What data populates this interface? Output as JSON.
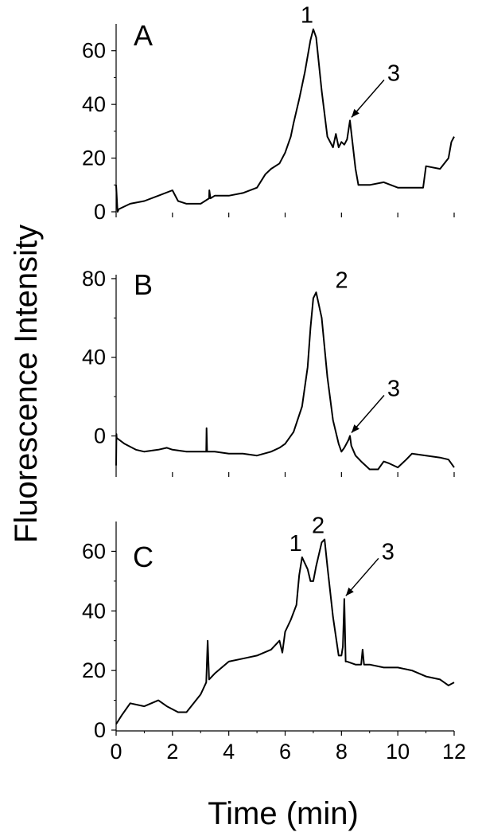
{
  "chart_data": [
    {
      "panel": "A",
      "type": "line",
      "x_range": [
        0,
        12
      ],
      "ylim": [
        0,
        70
      ],
      "y_ticks": [
        0,
        20,
        40,
        60
      ],
      "grid": false,
      "peak_labels": [
        {
          "text": "1",
          "x": 7.0,
          "y": 68
        },
        {
          "text": "3",
          "x": 8.3,
          "y": 34,
          "arrow": true
        }
      ],
      "series": [
        {
          "x": [
            0.0,
            0.05,
            0.1,
            0.5,
            1.0,
            1.5,
            2.0,
            2.2,
            2.5,
            3.0,
            3.3,
            3.31,
            3.35,
            3.5,
            4.0,
            4.5,
            5.0,
            5.3,
            5.5,
            5.8,
            6.0,
            6.2,
            6.3,
            6.5,
            6.7,
            6.9,
            7.0,
            7.1,
            7.3,
            7.5,
            7.7,
            7.8,
            7.9,
            8.0,
            8.1,
            8.2,
            8.3,
            8.4,
            8.5,
            8.6,
            9.0,
            9.5,
            10.0,
            10.5,
            10.9,
            11.0,
            11.5,
            11.8,
            11.9,
            12.0
          ],
          "y": [
            10,
            0,
            1,
            3,
            4,
            6,
            8,
            4,
            3,
            3,
            5,
            8,
            5,
            6,
            6,
            7,
            9,
            14,
            16,
            18,
            22,
            28,
            33,
            42,
            52,
            64,
            68,
            65,
            45,
            28,
            24,
            29,
            24,
            26,
            25,
            27,
            34,
            25,
            16,
            10,
            10,
            11,
            9,
            9,
            9,
            17,
            16,
            20,
            26,
            28
          ]
        }
      ]
    },
    {
      "panel": "B",
      "type": "line",
      "x_range": [
        0,
        12
      ],
      "ylim": [
        -18,
        82
      ],
      "y_ticks": [
        0,
        40,
        80
      ],
      "grid": false,
      "peak_labels": [
        {
          "text": "2",
          "x": 7.5,
          "y": 72
        },
        {
          "text": "3",
          "x": 8.3,
          "y": 0,
          "arrow": true
        }
      ],
      "series": [
        {
          "x": [
            0.0,
            0.01,
            0.02,
            0.3,
            0.7,
            1.0,
            1.5,
            1.8,
            2.0,
            2.5,
            3.0,
            3.2,
            3.21,
            3.23,
            3.5,
            4.0,
            4.5,
            5.0,
            5.5,
            5.8,
            6.0,
            6.3,
            6.6,
            6.8,
            6.9,
            7.0,
            7.1,
            7.3,
            7.5,
            7.7,
            7.9,
            8.0,
            8.1,
            8.25,
            8.3,
            8.35,
            8.5,
            8.7,
            9.0,
            9.3,
            9.5,
            9.7,
            10.0,
            10.3,
            10.5,
            11.0,
            11.5,
            11.8,
            12.0
          ],
          "y": [
            -15,
            1,
            -1,
            -4,
            -7,
            -8,
            -7,
            -6,
            -7,
            -8,
            -8,
            -8,
            4,
            -8,
            -8,
            -9,
            -9,
            -10,
            -8,
            -6,
            -4,
            2,
            15,
            35,
            55,
            70,
            73,
            60,
            30,
            8,
            -4,
            -8,
            -6,
            -2,
            0,
            -5,
            -10,
            -13,
            -17,
            -17,
            -13,
            -14,
            -16,
            -12,
            -9,
            -10,
            -11,
            -12,
            -16
          ]
        }
      ]
    },
    {
      "panel": "C",
      "type": "line",
      "x_range": [
        0,
        12
      ],
      "ylim": [
        0,
        70
      ],
      "y_ticks": [
        0,
        20,
        40,
        60
      ],
      "grid": false,
      "peak_labels": [
        {
          "text": "1",
          "x": 6.6,
          "y": 58
        },
        {
          "text": "2",
          "x": 7.4,
          "y": 64
        },
        {
          "text": "3",
          "x": 8.1,
          "y": 44,
          "arrow": true
        }
      ],
      "series": [
        {
          "x": [
            0.0,
            0.2,
            0.5,
            1.0,
            1.5,
            1.8,
            2.2,
            2.5,
            3.0,
            3.2,
            3.25,
            3.3,
            3.5,
            4.0,
            4.5,
            5.0,
            5.5,
            5.8,
            5.9,
            6.0,
            6.2,
            6.4,
            6.5,
            6.6,
            6.7,
            6.8,
            6.9,
            7.0,
            7.1,
            7.3,
            7.4,
            7.5,
            7.7,
            7.9,
            8.0,
            8.05,
            8.1,
            8.15,
            8.2,
            8.5,
            8.7,
            8.75,
            8.8,
            9.0,
            9.5,
            10.0,
            10.5,
            11.0,
            11.5,
            11.8,
            12.0
          ],
          "y": [
            2,
            5,
            9,
            8,
            10,
            8,
            6,
            6,
            12,
            16,
            30,
            17,
            19,
            23,
            24,
            25,
            27,
            30,
            26,
            33,
            37,
            42,
            52,
            58,
            56,
            54,
            50,
            50,
            55,
            63,
            64,
            55,
            38,
            25,
            25,
            28,
            44,
            23,
            23,
            22,
            22,
            27,
            22,
            22,
            21,
            21,
            20,
            18,
            17,
            15,
            16
          ]
        }
      ]
    }
  ],
  "x_axis": {
    "ticks": [
      0,
      2,
      4,
      6,
      8,
      10,
      12
    ],
    "label": "Time (min)"
  },
  "y_axis": {
    "label": "Fluorescence Intensity"
  },
  "style": {
    "line_color": "#000000",
    "background": "#ffffff"
  }
}
